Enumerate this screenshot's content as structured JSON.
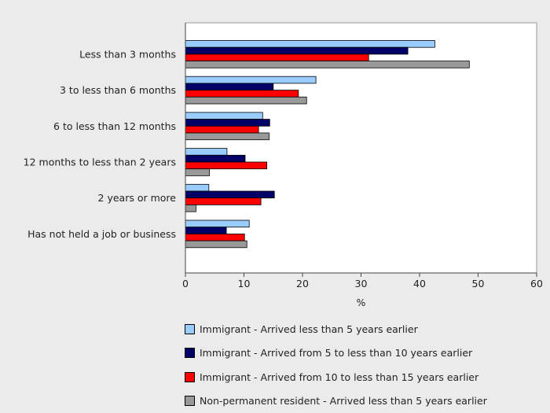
{
  "chart_data": {
    "type": "bar",
    "orientation": "horizontal",
    "categories": [
      "Less than 3 months",
      "3 to less than 6 months",
      "6 to less than 12 months",
      "12 months to less than 2 years",
      "2 years or more",
      "Has not held a job or business"
    ],
    "series": [
      {
        "name": "Immigrant - Arrived less than 5 years earlier",
        "color": "#99ccff",
        "values": [
          42.6,
          22.3,
          13.2,
          7.1,
          4.0,
          10.9
        ]
      },
      {
        "name": "Immigrant - Arrived from 5 to less than 10 years earlier",
        "color": "#000066",
        "values": [
          38.0,
          15.0,
          14.4,
          10.2,
          15.2,
          7.0
        ]
      },
      {
        "name": "Immigrant - Arrived from 10 to less than 15 years earlier",
        "color": "#ff0000",
        "values": [
          31.3,
          19.3,
          12.5,
          13.9,
          12.9,
          10.1
        ]
      },
      {
        "name": "Non-permanent resident - Arrived less than 5 years earlier",
        "color": "#999999",
        "values": [
          48.5,
          20.7,
          14.3,
          4.1,
          1.8,
          10.5
        ]
      }
    ],
    "xlabel": "%",
    "xlim": [
      0,
      60
    ],
    "xticks": [
      "0",
      "10",
      "20",
      "30",
      "40",
      "50",
      "60"
    ],
    "grid": false,
    "legend_position": "bottom"
  }
}
